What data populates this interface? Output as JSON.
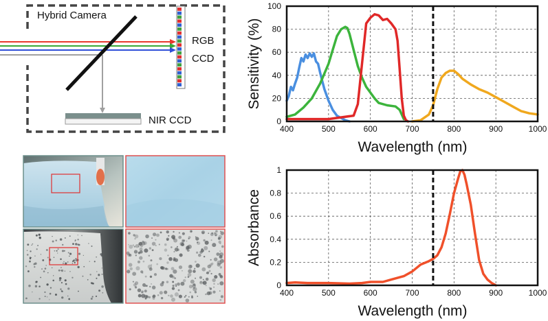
{
  "diagram": {
    "camera_label": "Hybrid Camera",
    "rgb_ccd_label_line1": "RGB",
    "rgb_ccd_label_line2": "CCD",
    "nir_ccd_label": "NIR CCD",
    "beam_colors": [
      "#e8382e",
      "#38a838",
      "#2f4fd8",
      "#a0a0a0"
    ],
    "sensor_stripe_colors": [
      "#e03030",
      "#3060d0",
      "#40a040",
      "#e03030",
      "#3060d0",
      "#40a040"
    ]
  },
  "chart_data": [
    {
      "type": "line",
      "title": "",
      "xlabel": "Wavelength (nm)",
      "ylabel": "Sensitivity (%)",
      "xlim": [
        400,
        1000
      ],
      "ylim": [
        0,
        100
      ],
      "xticks": [
        400,
        500,
        600,
        700,
        800,
        900,
        1000
      ],
      "yticks": [
        0,
        20,
        40,
        60,
        80,
        100
      ],
      "grid": true,
      "cutoff_line_x": 750,
      "series": [
        {
          "name": "blue",
          "color": "#4a8fe0",
          "x": [
            400,
            405,
            410,
            415,
            420,
            425,
            430,
            435,
            440,
            445,
            450,
            455,
            460,
            465,
            470,
            475,
            480,
            485,
            490,
            500,
            510,
            520,
            530,
            540,
            550
          ],
          "y": [
            18,
            22,
            30,
            27,
            33,
            38,
            47,
            55,
            52,
            58,
            55,
            59,
            56,
            59,
            52,
            50,
            42,
            35,
            28,
            18,
            10,
            5,
            3,
            1,
            0
          ]
        },
        {
          "name": "green",
          "color": "#3cb43c",
          "x": [
            400,
            420,
            440,
            460,
            480,
            500,
            510,
            520,
            530,
            540,
            545,
            550,
            560,
            570,
            580,
            590,
            600,
            610,
            620,
            640,
            660,
            670,
            680
          ],
          "y": [
            4,
            6,
            12,
            20,
            33,
            50,
            62,
            74,
            80,
            82,
            81,
            76,
            62,
            48,
            38,
            30,
            25,
            20,
            16,
            14,
            13,
            10,
            2
          ]
        },
        {
          "name": "red",
          "color": "#e02828",
          "x": [
            400,
            500,
            560,
            570,
            580,
            590,
            600,
            610,
            620,
            630,
            640,
            650,
            660,
            665,
            670,
            675,
            680,
            685,
            690
          ],
          "y": [
            2,
            2,
            5,
            15,
            50,
            85,
            90,
            93,
            92,
            88,
            89,
            85,
            80,
            70,
            45,
            20,
            5,
            1,
            0
          ]
        },
        {
          "name": "nir",
          "color": "#f0a81e",
          "x": [
            700,
            720,
            740,
            750,
            760,
            770,
            780,
            790,
            800,
            810,
            820,
            840,
            860,
            880,
            900,
            920,
            940,
            960,
            980,
            1000
          ],
          "y": [
            0,
            1,
            6,
            14,
            28,
            38,
            42,
            44,
            44,
            41,
            37,
            32,
            28,
            25,
            21,
            17,
            13,
            9,
            7,
            6
          ]
        }
      ]
    },
    {
      "type": "line",
      "title": "",
      "xlabel": "Wavelength (nm)",
      "ylabel": "Absorbance",
      "xlim": [
        400,
        1000
      ],
      "ylim": [
        0,
        1
      ],
      "xticks": [
        400,
        500,
        600,
        700,
        800,
        900,
        1000
      ],
      "yticks": [
        0,
        0.2,
        0.4,
        0.6,
        0.8,
        1
      ],
      "ytick_labels": [
        "0",
        "0.2",
        "0.4",
        "0.6",
        "0.8",
        "1"
      ],
      "grid": true,
      "cutoff_line_x": 750,
      "series": [
        {
          "name": "absorbance",
          "color": "#f0502a",
          "x": [
            400,
            420,
            450,
            500,
            550,
            580,
            600,
            630,
            650,
            680,
            700,
            720,
            740,
            750,
            760,
            770,
            780,
            790,
            800,
            810,
            815,
            820,
            825,
            830,
            840,
            850,
            860,
            870,
            880,
            890,
            900
          ],
          "y": [
            0.02,
            0.025,
            0.02,
            0.02,
            0.015,
            0.02,
            0.03,
            0.03,
            0.05,
            0.08,
            0.12,
            0.18,
            0.21,
            0.23,
            0.26,
            0.33,
            0.45,
            0.62,
            0.8,
            0.93,
            0.99,
            1.0,
            0.96,
            0.88,
            0.7,
            0.45,
            0.22,
            0.1,
            0.05,
            0.02,
            0.0
          ]
        }
      ]
    }
  ]
}
